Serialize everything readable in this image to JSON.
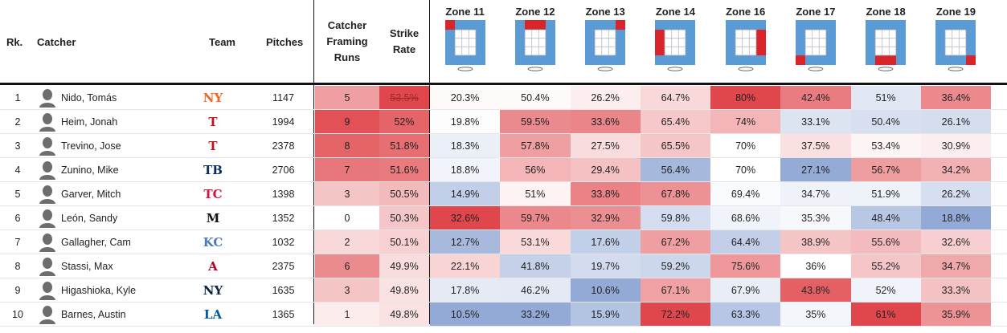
{
  "headers": {
    "rank": "Rk.",
    "catcher": "Catcher",
    "team": "Team",
    "pitches": "Pitches",
    "framing_lines": [
      "Catcher",
      "Framing",
      "Runs"
    ],
    "strike_lines": [
      "Strike",
      "Rate"
    ]
  },
  "zones": [
    {
      "label": "Zone 11",
      "highlight": "top-left"
    },
    {
      "label": "Zone 12",
      "highlight": "top"
    },
    {
      "label": "Zone 13",
      "highlight": "top-right"
    },
    {
      "label": "Zone 14",
      "highlight": "left"
    },
    {
      "label": "Zone 16",
      "highlight": "right"
    },
    {
      "label": "Zone 17",
      "highlight": "bottom-left"
    },
    {
      "label": "Zone 18",
      "highlight": "bottom"
    },
    {
      "label": "Zone 19",
      "highlight": "bottom-right"
    }
  ],
  "colors": {
    "zone_box": "#5b9bd5",
    "zone_highlight": "#d9252a",
    "heat_high": "#e0474c",
    "heat_low": "#93aad6"
  },
  "rows": [
    {
      "rank": "1",
      "name": "Nido, Tomás",
      "team": "NYM",
      "team_logo": "NY",
      "team_color": "#f26722",
      "pitches": "1147",
      "framing": "5",
      "strike": "53.5%",
      "zones": [
        "20.3%",
        "50.4%",
        "26.2%",
        "64.7%",
        "80%",
        "42.4%",
        "51%",
        "36.4%"
      ]
    },
    {
      "rank": "2",
      "name": "Heim, Jonah",
      "team": "TEX",
      "team_logo": "T",
      "team_color": "#c0111f",
      "pitches": "1994",
      "framing": "9",
      "strike": "52%",
      "zones": [
        "19.8%",
        "59.5%",
        "33.6%",
        "65.4%",
        "74%",
        "33.1%",
        "50.4%",
        "26.1%"
      ]
    },
    {
      "rank": "3",
      "name": "Trevino, Jose",
      "team": "TEX",
      "team_logo": "T",
      "team_color": "#c0111f",
      "pitches": "2378",
      "framing": "8",
      "strike": "51.8%",
      "zones": [
        "18.3%",
        "57.8%",
        "27.5%",
        "65.5%",
        "70%",
        "37.5%",
        "53.4%",
        "30.9%"
      ]
    },
    {
      "rank": "4",
      "name": "Zunino, Mike",
      "team": "TB",
      "team_logo": "TB",
      "team_color": "#092c5c",
      "pitches": "2706",
      "framing": "7",
      "strike": "51.6%",
      "zones": [
        "18.8%",
        "56%",
        "29.4%",
        "56.4%",
        "70%",
        "27.1%",
        "56.7%",
        "34.2%"
      ]
    },
    {
      "rank": "5",
      "name": "Garver, Mitch",
      "team": "MIN",
      "team_logo": "TC",
      "team_color": "#d31145",
      "pitches": "1398",
      "framing": "3",
      "strike": "50.5%",
      "zones": [
        "14.9%",
        "51%",
        "33.8%",
        "67.8%",
        "69.4%",
        "34.7%",
        "51.9%",
        "26.2%"
      ]
    },
    {
      "rank": "6",
      "name": "León, Sandy",
      "team": "MIA",
      "team_logo": "M",
      "team_color": "#111111",
      "pitches": "1352",
      "framing": "0",
      "strike": "50.3%",
      "zones": [
        "32.6%",
        "59.7%",
        "32.9%",
        "59.8%",
        "68.6%",
        "35.3%",
        "48.4%",
        "18.8%"
      ]
    },
    {
      "rank": "7",
      "name": "Gallagher, Cam",
      "team": "KC",
      "team_logo": "KC",
      "team_color": "#4a7ab8",
      "pitches": "1032",
      "framing": "2",
      "strike": "50.1%",
      "zones": [
        "12.7%",
        "53.1%",
        "17.6%",
        "67.2%",
        "64.4%",
        "38.9%",
        "55.6%",
        "32.6%"
      ]
    },
    {
      "rank": "8",
      "name": "Stassi, Max",
      "team": "LAA",
      "team_logo": "A",
      "team_color": "#ba0021",
      "pitches": "2375",
      "framing": "6",
      "strike": "49.9%",
      "zones": [
        "22.1%",
        "41.8%",
        "19.7%",
        "59.2%",
        "75.6%",
        "36%",
        "55.2%",
        "34.7%"
      ]
    },
    {
      "rank": "9",
      "name": "Higashioka, Kyle",
      "team": "NYY",
      "team_logo": "NY",
      "team_color": "#0c2340",
      "pitches": "1635",
      "framing": "3",
      "strike": "49.8%",
      "zones": [
        "17.8%",
        "46.2%",
        "10.6%",
        "67.1%",
        "67.9%",
        "43.8%",
        "52%",
        "33.3%"
      ]
    },
    {
      "rank": "10",
      "name": "Barnes, Austin",
      "team": "LAD",
      "team_logo": "LA",
      "team_color": "#005a9c",
      "pitches": "1365",
      "framing": "1",
      "strike": "49.8%",
      "zones": [
        "10.5%",
        "33.2%",
        "15.9%",
        "72.2%",
        "63.3%",
        "35%",
        "61%",
        "35.9%"
      ]
    }
  ]
}
